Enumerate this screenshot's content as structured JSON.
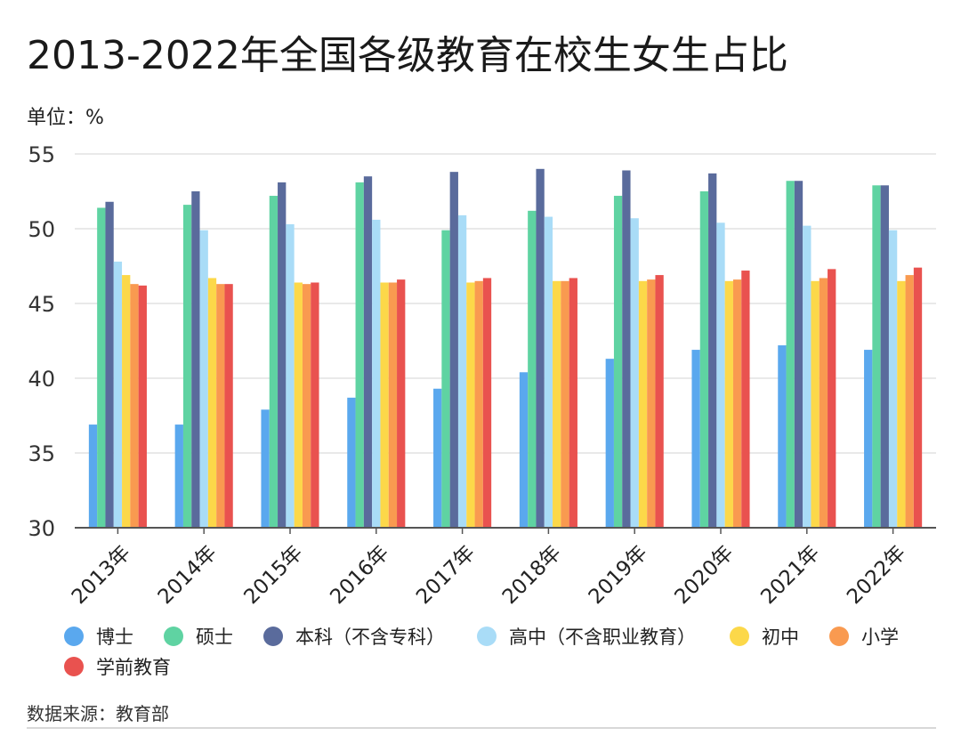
{
  "title": "2013-2022年全国各级教育在校生女生占比",
  "unit_label": "单位：%",
  "source": "数据来源：教育部",
  "chart_data": {
    "type": "bar",
    "title": "2013-2022年全国各级教育在校生女生占比",
    "xlabel": "",
    "ylabel": "",
    "ylim": [
      30,
      55
    ],
    "yticks": [
      30,
      35,
      40,
      45,
      50,
      55
    ],
    "grid": true,
    "legend_position": "bottom",
    "categories": [
      "2013年",
      "2014年",
      "2015年",
      "2016年",
      "2017年",
      "2018年",
      "2019年",
      "2020年",
      "2021年",
      "2022年"
    ],
    "series": [
      {
        "name": "博士",
        "color": "#5aa8ee",
        "values": [
          36.9,
          36.9,
          37.9,
          38.7,
          39.3,
          40.4,
          41.3,
          41.9,
          42.2,
          41.9
        ]
      },
      {
        "name": "硕士",
        "color": "#5fd3a2",
        "values": [
          51.4,
          51.6,
          52.2,
          53.1,
          49.9,
          51.2,
          52.2,
          52.5,
          53.2,
          52.9
        ]
      },
      {
        "name": "本科（不含专科）",
        "color": "#5a6b9c",
        "values": [
          51.8,
          52.5,
          53.1,
          53.5,
          53.8,
          54.0,
          53.9,
          53.7,
          53.2,
          52.9
        ]
      },
      {
        "name": "高中（不含职业教育）",
        "color": "#a9dcf7",
        "values": [
          47.8,
          49.9,
          50.3,
          50.6,
          50.9,
          50.8,
          50.7,
          50.4,
          50.2,
          49.9
        ]
      },
      {
        "name": "初中",
        "color": "#fcd849",
        "values": [
          46.9,
          46.7,
          46.4,
          46.4,
          46.4,
          46.5,
          46.5,
          46.5,
          46.5,
          46.5
        ]
      },
      {
        "name": "小学",
        "color": "#f99a50",
        "values": [
          46.3,
          46.3,
          46.3,
          46.4,
          46.5,
          46.5,
          46.6,
          46.6,
          46.7,
          46.9
        ]
      },
      {
        "name": "学前教育",
        "color": "#e9524f",
        "values": [
          46.2,
          46.3,
          46.4,
          46.6,
          46.7,
          46.7,
          46.9,
          47.2,
          47.3,
          47.4
        ]
      }
    ]
  }
}
